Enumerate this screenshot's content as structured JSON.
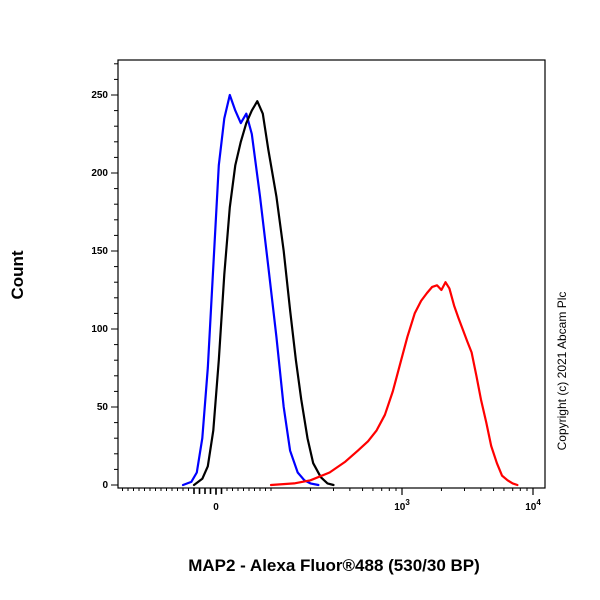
{
  "chart_data": {
    "type": "line",
    "title": "",
    "xlabel": "MAP2 - Alexa Fluor®488 (530/30 BP)",
    "ylabel": "Count",
    "xscale": "biexponential",
    "xticks": [
      {
        "value": 0,
        "base": "0",
        "exp": ""
      },
      {
        "value": 1000,
        "base": "10",
        "exp": "3"
      },
      {
        "value": 10000,
        "base": "10",
        "exp": "4"
      }
    ],
    "ylim": [
      0,
      270
    ],
    "yticks": [
      0,
      50,
      100,
      150,
      200,
      250
    ],
    "grid": false,
    "legend": "none",
    "copyright": "Copyright (c) 2021 Abcam Plc",
    "series": [
      {
        "color": "#0000ff",
        "x": [
          -60,
          -45,
          -35,
          -25,
          -15,
          -5,
          5,
          15,
          25,
          35,
          45,
          55,
          65,
          80,
          95,
          110,
          125,
          140,
          160,
          180,
          200,
          230
        ],
        "y": [
          0,
          2,
          8,
          30,
          75,
          140,
          205,
          235,
          250,
          240,
          232,
          238,
          225,
          185,
          140,
          95,
          50,
          22,
          8,
          3,
          1,
          0
        ]
      },
      {
        "color": "#000000",
        "x": [
          -40,
          -25,
          -15,
          -5,
          5,
          15,
          25,
          35,
          45,
          55,
          65,
          75,
          85,
          95,
          110,
          125,
          140,
          155,
          170,
          190,
          210,
          240,
          270,
          300
        ],
        "y": [
          0,
          4,
          12,
          35,
          80,
          135,
          178,
          205,
          220,
          232,
          240,
          246,
          238,
          215,
          185,
          150,
          112,
          80,
          55,
          30,
          14,
          5,
          1,
          0
        ]
      },
      {
        "color": "#ff0000",
        "x": [
          100,
          150,
          200,
          280,
          370,
          460,
          550,
          640,
          740,
          850,
          970,
          1100,
          1250,
          1400,
          1550,
          1700,
          1850,
          2000,
          2150,
          2300,
          2500,
          2700,
          2900,
          3150,
          3400,
          3700,
          4000,
          4400,
          4800,
          5300,
          5800,
          6400,
          7000,
          7600
        ],
        "y": [
          0,
          1,
          3,
          8,
          15,
          22,
          28,
          35,
          45,
          60,
          78,
          95,
          110,
          118,
          123,
          127,
          128,
          125,
          130,
          126,
          115,
          107,
          100,
          92,
          85,
          70,
          55,
          40,
          25,
          14,
          6,
          3,
          1,
          0
        ]
      }
    ]
  }
}
